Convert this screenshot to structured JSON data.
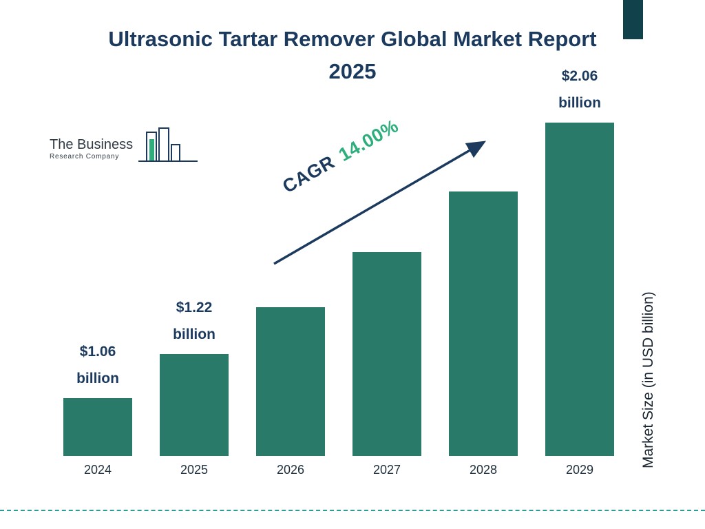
{
  "logo": {
    "name_top": "The Business",
    "name_bottom": "Research Company"
  },
  "annotation": {
    "cagr_label": "CAGR",
    "cagr_value": "14.00%"
  },
  "chart_data": {
    "type": "bar",
    "title": "Ultrasonic Tartar Remover Global Market Report 2025",
    "categories": [
      "2024",
      "2025",
      "2026",
      "2027",
      "2028",
      "2029"
    ],
    "values": [
      1.06,
      1.22,
      1.39,
      1.59,
      1.81,
      2.06
    ],
    "value_labels": [
      {
        "amount": "$1.06",
        "unit": "billion"
      },
      {
        "amount": "$1.22",
        "unit": "billion"
      },
      null,
      null,
      null,
      {
        "amount": "$2.06",
        "unit": "billion"
      }
    ],
    "cagr": "14.00%",
    "ylabel": "Market Size (in USD billion)",
    "xlabel": "",
    "ylim": [
      0.85,
      2.15
    ],
    "grid": false,
    "legend": false,
    "bar_color": "#2a7a6a",
    "accent_navy": "#1b3a5e",
    "accent_green": "#2dae7c"
  }
}
